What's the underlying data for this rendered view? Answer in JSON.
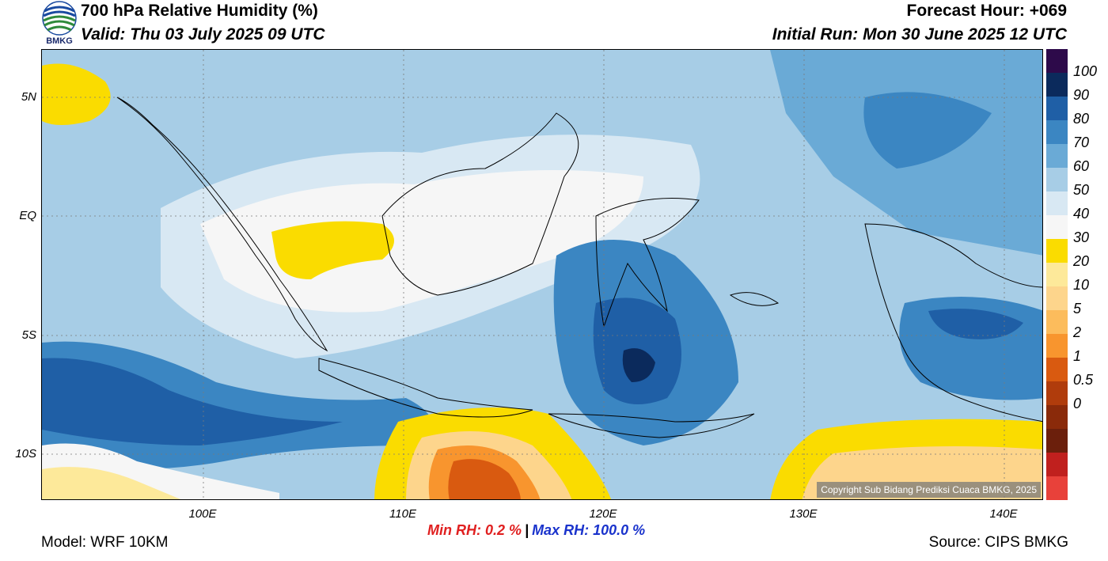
{
  "header": {
    "title": "700 hPa Relative Humidity (%)",
    "valid": "Valid: Thu 03 July 2025 09 UTC",
    "forecast_hour": "Forecast Hour: +069",
    "initial_run": "Initial Run: Mon 30 June 2025 12 UTC"
  },
  "logo": {
    "text": "BMKG"
  },
  "map": {
    "lat_labels": [
      "5N",
      "EQ",
      "5S",
      "10S"
    ],
    "lon_labels": [
      "100E",
      "110E",
      "120E",
      "130E",
      "140E"
    ],
    "copyright": "Copyright Sub Bidang Prediksi Cuaca BMKG, 2025"
  },
  "colorbar": {
    "labels": [
      "100",
      "90",
      "80",
      "70",
      "60",
      "50",
      "40",
      "30",
      "20",
      "10",
      "5",
      "2",
      "1",
      "0.5",
      "0"
    ],
    "colors": [
      "#2d0a4a",
      "#0b2a5c",
      "#1f5fa6",
      "#3b86c2",
      "#6aaad6",
      "#a7cde6",
      "#d8e8f3",
      "#f6f6f6",
      "#fadc00",
      "#fde99a",
      "#fdd58c",
      "#fcbc5c",
      "#f8952e",
      "#d95a10",
      "#b03c0c",
      "#8a2a0a",
      "#6b1f0c",
      "#c0201e",
      "#e8413a"
    ]
  },
  "footer": {
    "min_rh": "Min RH:   0.2 %",
    "separator": "|",
    "max_rh": "Max RH: 100.0 %",
    "model": "Model: WRF 10KM",
    "source": "Source: CIPS BMKG"
  }
}
